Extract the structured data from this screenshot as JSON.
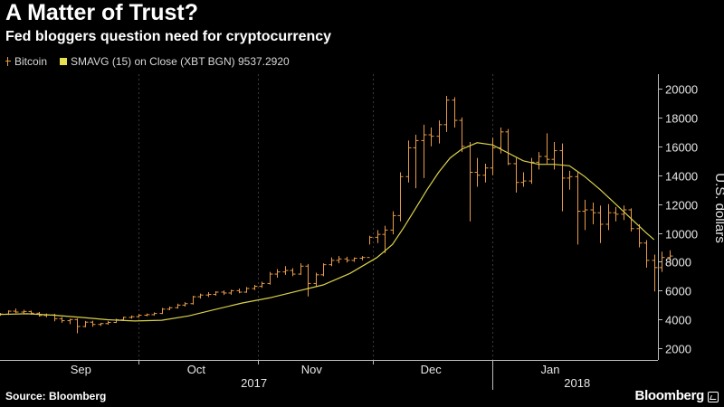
{
  "header": {
    "title": "A Matter of Trust?",
    "subtitle": "Fed bloggers question need for cryptocurrency"
  },
  "legend": [
    {
      "label": "Bitcoin",
      "color": "#e89a48"
    },
    {
      "label": "SMAVG (15) on Close (XBT BGN) 9537.2920",
      "color": "#e8e050"
    }
  ],
  "footer": {
    "source": "Source: Bloomberg",
    "logo": "Bloomberg"
  },
  "colors": {
    "bitcoin": "#e89a48",
    "smavg": "#d9d24a",
    "grid": "#3a3a3a",
    "axis": "#bbbbbb"
  },
  "chart_data": {
    "type": "ohlc",
    "ylabel": "U.S. dollars",
    "ylim": [
      1200,
      21000
    ],
    "yticks": [
      2000,
      4000,
      6000,
      8000,
      10000,
      12000,
      14000,
      16000,
      18000,
      20000
    ],
    "y_axis_side": "right",
    "grid": "vertical dotted at month boundaries",
    "xlim": [
      "2017-08-26",
      "2018-02-13"
    ],
    "months": [
      {
        "label": "Sep",
        "center": "2017-09-16",
        "start": "2017-09-01"
      },
      {
        "label": "Oct",
        "center": "2017-10-16",
        "start": "2017-10-01"
      },
      {
        "label": "Nov",
        "center": "2017-11-15",
        "start": "2017-11-01"
      },
      {
        "label": "Dec",
        "center": "2017-12-16",
        "start": "2017-12-01"
      },
      {
        "label": "Jan",
        "center": "2018-01-16",
        "start": "2018-01-01"
      }
    ],
    "years": [
      {
        "label": "2017",
        "center": "2017-10-31"
      },
      {
        "label": "2018",
        "center": "2018-01-23"
      }
    ],
    "year_divider": "2018-01-01",
    "series": [
      {
        "name": "Bitcoin",
        "kind": "ohlc",
        "start_date": "2017-08-26",
        "interval_days": 2,
        "bars": [
          [
            4340,
            4460,
            4260,
            4380
          ],
          [
            4380,
            4640,
            4320,
            4580
          ],
          [
            4580,
            4760,
            4440,
            4520
          ],
          [
            4520,
            4680,
            4420,
            4560
          ],
          [
            4560,
            4620,
            4350,
            4440
          ],
          [
            4440,
            4520,
            4200,
            4280
          ],
          [
            4280,
            4420,
            4160,
            4320
          ],
          [
            4320,
            4400,
            3880,
            4060
          ],
          [
            4060,
            4180,
            3780,
            3920
          ],
          [
            3920,
            4060,
            3680,
            4000
          ],
          [
            4000,
            4080,
            3050,
            3520
          ],
          [
            3520,
            3900,
            3460,
            3820
          ],
          [
            3820,
            3920,
            3500,
            3660
          ],
          [
            3660,
            3780,
            3560,
            3720
          ],
          [
            3720,
            3900,
            3640,
            3800
          ],
          [
            3800,
            4060,
            3760,
            3980
          ],
          [
            3980,
            4200,
            3900,
            4150
          ],
          [
            4150,
            4280,
            4060,
            4200
          ],
          [
            4200,
            4380,
            4140,
            4300
          ],
          [
            4300,
            4420,
            4220,
            4340
          ],
          [
            4340,
            4500,
            4280,
            4420
          ],
          [
            4420,
            4800,
            4380,
            4720
          ],
          [
            4720,
            4900,
            4650,
            4820
          ],
          [
            4820,
            5100,
            4760,
            5000
          ],
          [
            5000,
            5200,
            4900,
            5100
          ],
          [
            5100,
            5650,
            5040,
            5580
          ],
          [
            5580,
            5800,
            5450,
            5700
          ],
          [
            5700,
            5900,
            5560,
            5740
          ],
          [
            5740,
            5960,
            5660,
            5900
          ],
          [
            5900,
            6020,
            5700,
            5840
          ],
          [
            5840,
            6060,
            5720,
            6000
          ],
          [
            6000,
            6150,
            5820,
            5900
          ],
          [
            5900,
            6250,
            5850,
            6150
          ],
          [
            6150,
            6400,
            6050,
            6300
          ],
          [
            6300,
            6620,
            6200,
            6500
          ],
          [
            6500,
            7300,
            6420,
            7150
          ],
          [
            7150,
            7500,
            6900,
            7300
          ],
          [
            7300,
            7700,
            7100,
            7400
          ],
          [
            7400,
            7560,
            7000,
            7150
          ],
          [
            7150,
            7900,
            7100,
            7700
          ],
          [
            7700,
            7850,
            5600,
            6500
          ],
          [
            6500,
            7250,
            6300,
            7100
          ],
          [
            7100,
            7900,
            7000,
            7800
          ],
          [
            7800,
            8300,
            7700,
            8100
          ],
          [
            8100,
            8400,
            7900,
            8200
          ],
          [
            8200,
            8350,
            7950,
            8100
          ],
          [
            8100,
            8300,
            8000,
            8250
          ],
          [
            8250,
            8400,
            8100,
            8300
          ],
          [
            8300,
            9800,
            9200,
            9700
          ],
          [
            9700,
            10200,
            9300,
            9900
          ],
          [
            9900,
            10500,
            8600,
            10200
          ],
          [
            10200,
            11500,
            9900,
            11200
          ],
          [
            11200,
            14200,
            10800,
            13900
          ],
          [
            13900,
            16400,
            13500,
            15900
          ],
          [
            15900,
            16800,
            13100,
            16400
          ],
          [
            16400,
            17500,
            13800,
            16800
          ],
          [
            16800,
            17300,
            16000,
            16700
          ],
          [
            16700,
            17800,
            16200,
            17500
          ],
          [
            17500,
            19500,
            17000,
            19200
          ],
          [
            19200,
            19400,
            17300,
            17800
          ],
          [
            17800,
            18000,
            15600,
            16000
          ],
          [
            16000,
            16300,
            10800,
            14200
          ],
          [
            14200,
            15200,
            13200,
            14000
          ],
          [
            14000,
            14800,
            13500,
            14500
          ],
          [
            14500,
            16600,
            14000,
            15900
          ],
          [
            15900,
            17300,
            15500,
            17000
          ],
          [
            17000,
            17200,
            14700,
            14800
          ],
          [
            14800,
            15200,
            12800,
            13500
          ],
          [
            13500,
            14200,
            13200,
            13600
          ],
          [
            13600,
            15200,
            13400,
            14900
          ],
          [
            14900,
            15600,
            14400,
            15300
          ],
          [
            15300,
            16900,
            14800,
            15100
          ],
          [
            15100,
            16300,
            14400,
            15700
          ],
          [
            15700,
            16200,
            11500,
            13800
          ],
          [
            13800,
            14300,
            13000,
            13900
          ],
          [
            13900,
            14200,
            9200,
            11500
          ],
          [
            11500,
            12300,
            10200,
            11600
          ],
          [
            11600,
            12100,
            10600,
            11400
          ],
          [
            11400,
            11900,
            9300,
            10600
          ],
          [
            10600,
            12000,
            10200,
            11400
          ],
          [
            11400,
            11800,
            10800,
            11300
          ],
          [
            11300,
            11900,
            10900,
            11600
          ],
          [
            11600,
            11700,
            10100,
            10300
          ],
          [
            10300,
            10600,
            9000,
            9300
          ],
          [
            9300,
            9500,
            7600,
            8100
          ],
          [
            8100,
            8500,
            5950,
            7600
          ],
          [
            7600,
            8700,
            7300,
            8300
          ],
          [
            8300,
            8800,
            7800,
            8400
          ]
        ]
      },
      {
        "name": "SMAVG (15) on Close (XBT BGN)",
        "kind": "line",
        "last_value": 9537.292,
        "points": [
          [
            "2017-08-26",
            4350
          ],
          [
            "2017-09-02",
            4400
          ],
          [
            "2017-09-09",
            4300
          ],
          [
            "2017-09-16",
            4150
          ],
          [
            "2017-09-23",
            3990
          ],
          [
            "2017-09-30",
            3900
          ],
          [
            "2017-10-07",
            3950
          ],
          [
            "2017-10-14",
            4250
          ],
          [
            "2017-10-21",
            4700
          ],
          [
            "2017-10-28",
            5150
          ],
          [
            "2017-11-04",
            5500
          ],
          [
            "2017-11-11",
            5950
          ],
          [
            "2017-11-18",
            6400
          ],
          [
            "2017-11-25",
            7200
          ],
          [
            "2017-12-02",
            8300
          ],
          [
            "2017-12-06",
            9200
          ],
          [
            "2017-12-09",
            10400
          ],
          [
            "2017-12-12",
            11700
          ],
          [
            "2017-12-15",
            13000
          ],
          [
            "2017-12-18",
            14200
          ],
          [
            "2017-12-21",
            15200
          ],
          [
            "2017-12-24",
            15800
          ],
          [
            "2017-12-28",
            16250
          ],
          [
            "2018-01-01",
            16100
          ],
          [
            "2018-01-05",
            15550
          ],
          [
            "2018-01-09",
            15000
          ],
          [
            "2018-01-13",
            14750
          ],
          [
            "2018-01-17",
            14750
          ],
          [
            "2018-01-21",
            14650
          ],
          [
            "2018-01-25",
            13900
          ],
          [
            "2018-01-29",
            13000
          ],
          [
            "2018-02-02",
            12000
          ],
          [
            "2018-02-06",
            11000
          ],
          [
            "2018-02-10",
            10000
          ],
          [
            "2018-02-12",
            9537
          ]
        ]
      }
    ]
  }
}
